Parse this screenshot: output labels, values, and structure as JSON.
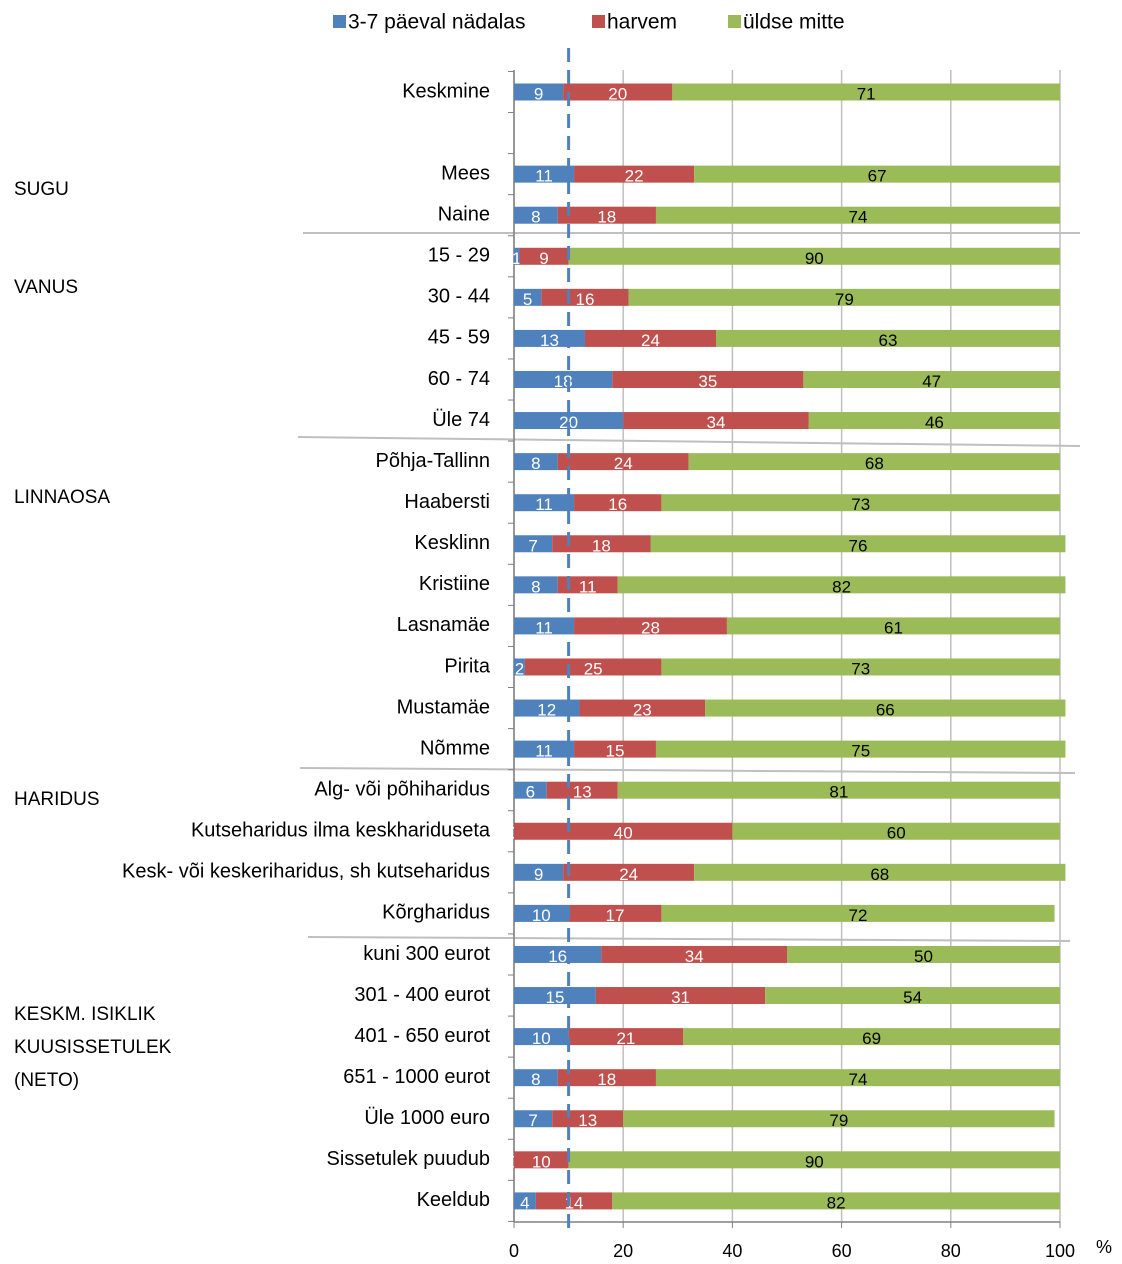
{
  "chart_data": {
    "type": "stacked_bar_horizontal",
    "categories": [
      "Keskmine",
      null,
      "Mees",
      "Naine",
      "15 - 29",
      "30 - 44",
      "45 - 59",
      "60 - 74",
      "Üle 74",
      "Põhja-Tallinn",
      "Haabersti",
      "Kesklinn",
      "Kristiine",
      "Lasnamäe",
      "Pirita",
      "Mustamäe",
      "Nõmme",
      "Alg- või põhiharidus",
      "Kutseharidus ilma keskhariduseta",
      "Kesk- või keskeriharidus, sh kutseharidus",
      "Kõrgharidus",
      "kuni 300 eurot",
      "301 - 400 eurot",
      "401 - 650 eurot",
      "651 - 1000 eurot",
      "Üle 1000 euro",
      "Sissetulek puudub",
      "Keeldub"
    ],
    "series": [
      {
        "name": "3-7 päeval nädalas",
        "color": "#4f81bd",
        "label_color": "#ffffff",
        "values": [
          9,
          null,
          11,
          8,
          1,
          5,
          13,
          18,
          20,
          8,
          11,
          7,
          8,
          11,
          2,
          12,
          11,
          6,
          0,
          9,
          10,
          16,
          15,
          10,
          8,
          7,
          0,
          4
        ]
      },
      {
        "name": "harvem",
        "color": "#c0504d",
        "label_color": "#ffffff",
        "values": [
          20,
          null,
          22,
          18,
          9,
          16,
          24,
          35,
          34,
          24,
          16,
          18,
          11,
          28,
          25,
          23,
          15,
          13,
          40,
          24,
          17,
          34,
          31,
          21,
          18,
          13,
          10,
          14
        ]
      },
      {
        "name": "üldse mitte",
        "color": "#9bbb59",
        "label_color": "#000000",
        "values": [
          71,
          null,
          67,
          74,
          90,
          79,
          63,
          47,
          46,
          68,
          73,
          76,
          82,
          61,
          73,
          66,
          75,
          81,
          60,
          68,
          72,
          50,
          54,
          69,
          74,
          79,
          90,
          82
        ]
      }
    ],
    "groups": [
      [
        "SUGU"
      ],
      [
        "VANUS"
      ],
      [
        "LINNAOSA"
      ],
      [
        "HARIDUS"
      ],
      [
        "KESKM. ISIKLIK",
        "KUUSISSETULEK",
        "(NETO)"
      ]
    ],
    "xlim": [
      0,
      100
    ],
    "xticks": [
      0,
      20,
      40,
      60,
      80,
      100
    ],
    "x_unit": "%",
    "grid": true,
    "reference_line": {
      "value": 10,
      "color": "#4f81bd",
      "dashed": true
    },
    "legend": "top"
  }
}
